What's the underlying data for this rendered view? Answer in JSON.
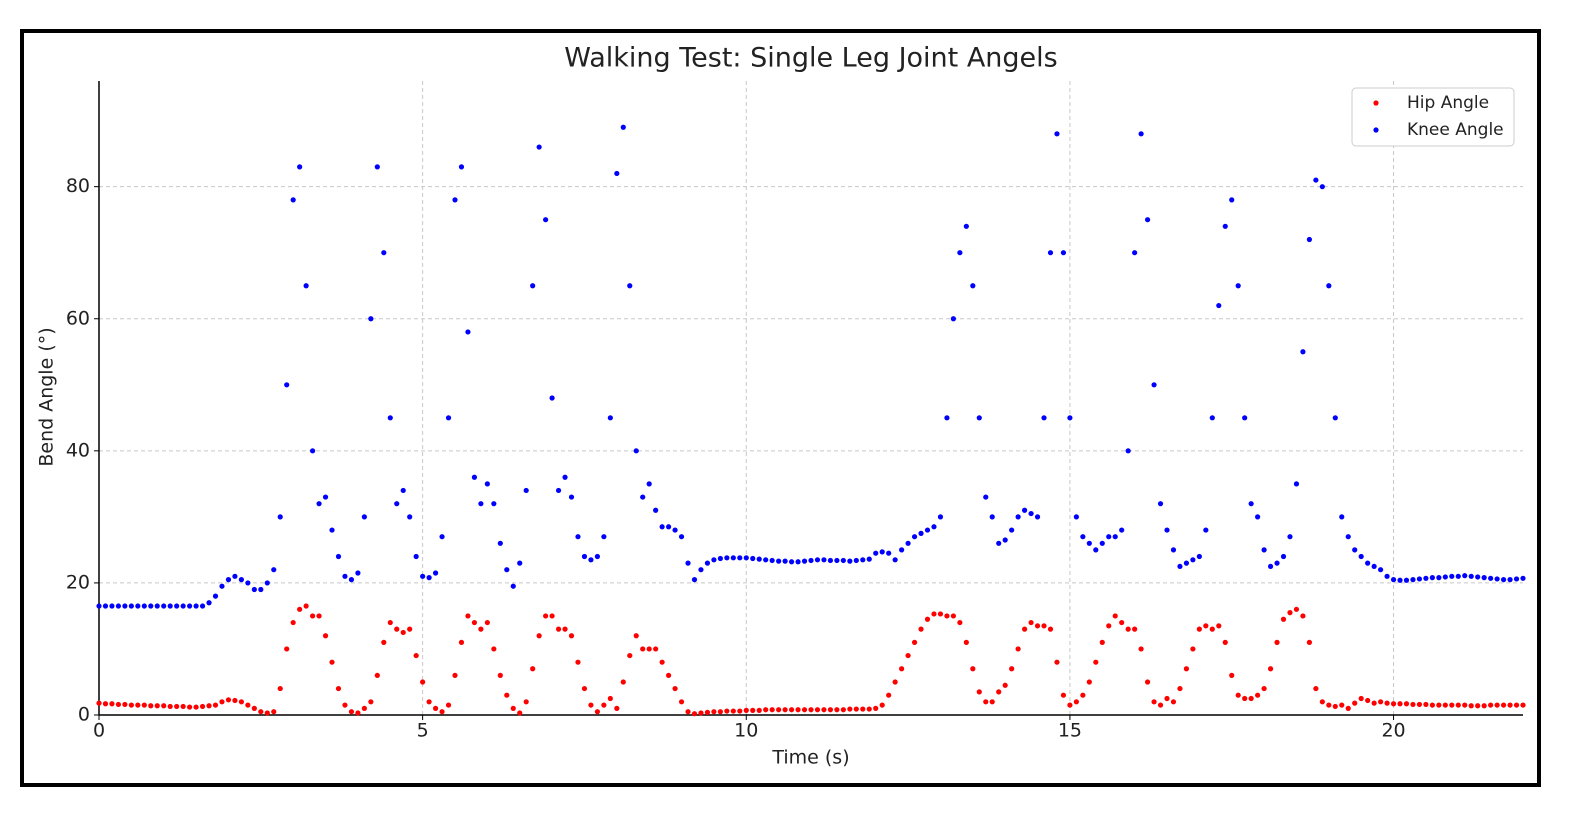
{
  "chart_data": {
    "type": "scatter",
    "title": "Walking Test: Single Leg Joint Angels",
    "x_label": "Time (s)",
    "y_label": "Bend Angle (°)",
    "xlim": [
      0,
      22
    ],
    "ylim": [
      0,
      96
    ],
    "xticks": [
      0,
      5,
      10,
      15,
      20
    ],
    "yticks": [
      0,
      20,
      40,
      60,
      80
    ],
    "grid": true,
    "legend": "upper right",
    "x": [
      0,
      0.1,
      0.2,
      0.3,
      0.4,
      0.5,
      0.6,
      0.7,
      0.8,
      0.9,
      1,
      1.1,
      1.2,
      1.3,
      1.4,
      1.5,
      1.6,
      1.7,
      1.8,
      1.9,
      2,
      2.1,
      2.2,
      2.3,
      2.4,
      2.5,
      2.6,
      2.7,
      2.8,
      2.9,
      3,
      3.1,
      3.2,
      3.3,
      3.4,
      3.5,
      3.6,
      3.7,
      3.8,
      3.9,
      4,
      4.1,
      4.2,
      4.3,
      4.4,
      4.5,
      4.6,
      4.7,
      4.8,
      4.9,
      5,
      5.1,
      5.2,
      5.3,
      5.4,
      5.5,
      5.6,
      5.7,
      5.8,
      5.9,
      6,
      6.1,
      6.2,
      6.3,
      6.4,
      6.5,
      6.6,
      6.7,
      6.8,
      6.9,
      7,
      7.1,
      7.2,
      7.3,
      7.4,
      7.5,
      7.6,
      7.7,
      7.8,
      7.9,
      8,
      8.1,
      8.2,
      8.3,
      8.4,
      8.5,
      8.6,
      8.7,
      8.8,
      8.9,
      9,
      9.1,
      9.2,
      9.3,
      9.4,
      9.5,
      9.6,
      9.7,
      9.8,
      9.9,
      10,
      10.1,
      10.2,
      10.3,
      10.4,
      10.5,
      10.6,
      10.7,
      10.8,
      10.9,
      11,
      11.1,
      11.2,
      11.3,
      11.4,
      11.5,
      11.6,
      11.7,
      11.8,
      11.9,
      12,
      12.1,
      12.2,
      12.3,
      12.4,
      12.5,
      12.6,
      12.7,
      12.8,
      12.9,
      13,
      13.1,
      13.2,
      13.3,
      13.4,
      13.5,
      13.6,
      13.7,
      13.8,
      13.9,
      14,
      14.1,
      14.2,
      14.3,
      14.4,
      14.5,
      14.6,
      14.7,
      14.8,
      14.9,
      15,
      15.1,
      15.2,
      15.3,
      15.4,
      15.5,
      15.6,
      15.7,
      15.8,
      15.9,
      16,
      16.1,
      16.2,
      16.3,
      16.4,
      16.5,
      16.6,
      16.7,
      16.8,
      16.9,
      17,
      17.1,
      17.2,
      17.3,
      17.4,
      17.5,
      17.6,
      17.7,
      17.8,
      17.9,
      18,
      18.1,
      18.2,
      18.3,
      18.4,
      18.5,
      18.6,
      18.7,
      18.8,
      18.9,
      19,
      19.1,
      19.2,
      19.3,
      19.4,
      19.5,
      19.6,
      19.7,
      19.8,
      19.9,
      20,
      20.1,
      20.2,
      20.3,
      20.4,
      20.5,
      20.6,
      20.7,
      20.8,
      20.9,
      21,
      21.1,
      21.2,
      21.3,
      21.4,
      21.5,
      21.6,
      21.7,
      21.8,
      21.9,
      22
    ],
    "series": [
      {
        "name": "Hip Angle",
        "color": "#ff0000",
        "values": [
          1.8,
          1.7,
          1.7,
          1.6,
          1.6,
          1.5,
          1.5,
          1.5,
          1.4,
          1.4,
          1.4,
          1.3,
          1.3,
          1.3,
          1.2,
          1.2,
          1.3,
          1.4,
          1.5,
          2,
          2.3,
          2.2,
          2,
          1.5,
          1,
          0.5,
          0.3,
          0.5,
          4,
          10,
          14,
          16,
          16.5,
          15,
          15,
          12,
          8,
          4,
          1.5,
          0.5,
          0.3,
          1,
          2,
          6,
          11,
          14,
          13,
          12.5,
          13,
          9,
          5,
          2,
          1,
          0.5,
          1.5,
          6,
          11,
          15,
          14,
          13,
          14,
          10,
          6,
          3,
          1,
          0.3,
          2,
          7,
          12,
          15,
          15,
          13,
          13,
          12,
          8,
          4,
          1.5,
          0.5,
          1.5,
          2.5,
          1,
          5,
          9,
          12,
          10,
          10,
          10,
          8,
          6,
          4,
          2,
          0.5,
          0.2,
          0.3,
          0.4,
          0.5,
          0.5,
          0.6,
          0.6,
          0.6,
          0.7,
          0.7,
          0.7,
          0.8,
          0.8,
          0.8,
          0.8,
          0.8,
          0.8,
          0.8,
          0.8,
          0.8,
          0.8,
          0.8,
          0.8,
          0.8,
          0.9,
          0.9,
          0.9,
          0.9,
          1,
          1.5,
          3,
          5,
          7,
          9,
          11,
          13,
          14.5,
          15.3,
          15.3,
          15,
          15,
          14,
          11,
          7,
          3.5,
          2,
          2,
          3.5,
          4.5,
          7,
          10,
          13,
          14,
          13.5,
          13.5,
          13,
          8,
          3,
          1.5,
          2,
          3,
          5,
          8,
          11,
          13.5,
          15,
          14,
          13,
          13,
          10,
          5,
          2,
          1.5,
          2.5,
          2,
          4,
          7,
          10,
          13,
          13.5,
          13,
          13.5,
          11,
          6,
          3,
          2.5,
          2.5,
          3,
          4,
          7,
          11,
          14.5,
          15.5,
          16,
          15,
          11,
          4,
          2,
          1.5,
          1.3,
          1.5,
          1,
          1.8,
          2.5,
          2.2,
          1.8,
          2,
          1.8,
          1.7,
          1.7,
          1.7,
          1.6,
          1.6,
          1.6,
          1.5,
          1.5,
          1.5,
          1.5,
          1.5,
          1.5,
          1.4,
          1.4,
          1.4,
          1.5,
          1.5,
          1.5,
          1.5,
          1.5,
          1.5
        ]
      },
      {
        "name": "Knee Angle",
        "color": "#0000ff",
        "values": [
          16.5,
          16.5,
          16.5,
          16.5,
          16.5,
          16.5,
          16.5,
          16.5,
          16.5,
          16.5,
          16.5,
          16.5,
          16.5,
          16.5,
          16.5,
          16.5,
          16.5,
          17,
          18,
          19.5,
          20.5,
          21,
          20.5,
          20,
          19,
          19,
          20,
          22,
          30,
          50,
          78,
          83,
          65,
          40,
          32,
          33,
          28,
          24,
          21,
          20.5,
          21.5,
          30,
          60,
          83,
          70,
          45,
          32,
          34,
          30,
          24,
          21,
          20.8,
          21.5,
          27,
          45,
          78,
          83,
          58,
          36,
          32,
          35,
          32,
          26,
          22,
          19.5,
          23,
          34,
          65,
          86,
          75,
          48,
          34,
          36,
          33,
          27,
          24,
          23.5,
          24,
          27,
          45,
          82,
          89,
          65,
          40,
          33,
          35,
          31,
          28.5,
          28.5,
          28,
          27,
          23,
          20.5,
          22,
          23,
          23.5,
          23.7,
          23.8,
          23.8,
          23.8,
          23.8,
          23.7,
          23.6,
          23.5,
          23.4,
          23.3,
          23.3,
          23.2,
          23.2,
          23.3,
          23.4,
          23.5,
          23.5,
          23.4,
          23.4,
          23.4,
          23.3,
          23.4,
          23.5,
          23.6,
          24.5,
          24.7,
          24.5,
          23.5,
          25,
          26,
          27,
          27.5,
          28,
          28.5,
          30,
          45,
          60,
          70,
          74,
          65,
          45,
          33,
          30,
          26,
          26.5,
          28,
          30,
          31,
          30.5,
          30,
          45,
          70,
          88,
          70,
          45,
          30,
          27,
          26,
          25,
          26,
          27,
          27,
          28,
          40,
          70,
          88,
          75,
          50,
          32,
          28,
          25,
          22.5,
          23,
          23.5,
          24,
          28,
          45,
          62,
          74,
          78,
          65,
          45,
          32,
          30,
          25,
          22.5,
          23,
          24,
          27,
          35,
          55,
          72,
          81,
          80,
          65,
          45,
          30,
          27,
          25,
          24,
          23,
          22.5,
          22,
          21,
          20.5,
          20.4,
          20.4,
          20.5,
          20.6,
          20.7,
          20.8,
          20.8,
          20.9,
          21,
          21,
          21.1,
          21,
          20.9,
          20.8,
          20.7,
          20.6,
          20.5,
          20.5,
          20.6,
          20.7
        ]
      }
    ]
  }
}
